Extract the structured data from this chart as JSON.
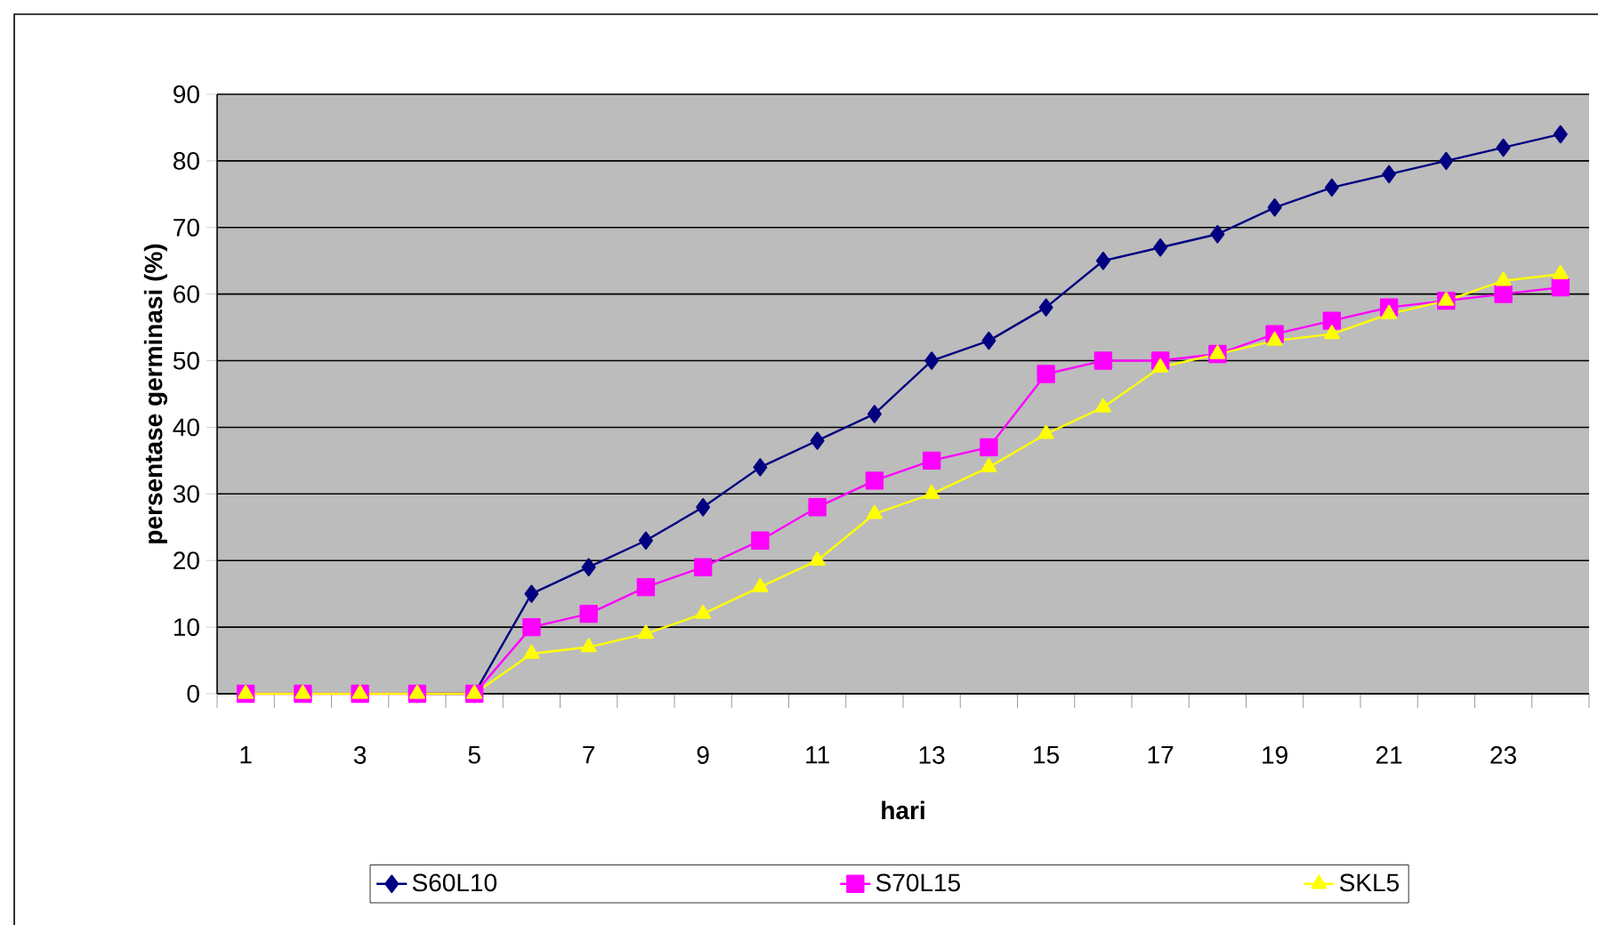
{
  "chart_data": {
    "type": "line",
    "xlabel": "hari",
    "ylabel": "persentase germinasi (%)",
    "categories": [
      "1",
      null,
      "3",
      null,
      "5",
      null,
      "7",
      null,
      "9",
      null,
      "11",
      null,
      "13",
      null,
      "15",
      null,
      "17",
      null,
      "19",
      null,
      "21",
      null,
      "23",
      null
    ],
    "series": [
      {
        "name": "S60L10",
        "color": "#000080",
        "marker": "diamond",
        "values": [
          null,
          null,
          null,
          0,
          0,
          15,
          19,
          23,
          28,
          34,
          38,
          42,
          50,
          53,
          58,
          65,
          67,
          69,
          73,
          76,
          78,
          80,
          82,
          84
        ]
      },
      {
        "name": "S70L15",
        "color": "#ff00ff",
        "marker": "square",
        "values": [
          0,
          0,
          0,
          0,
          0,
          10,
          12,
          16,
          19,
          23,
          28,
          32,
          35,
          37,
          48,
          50,
          50,
          51,
          54,
          56,
          58,
          59,
          60,
          61
        ]
      },
      {
        "name": "SKL5",
        "color": "#ffff00",
        "marker": "triangle",
        "values": [
          0,
          0,
          0,
          0,
          0,
          6,
          7,
          9,
          12,
          16,
          20,
          27,
          30,
          34,
          39,
          43,
          49,
          51,
          53,
          54,
          57,
          59,
          62,
          63
        ]
      }
    ],
    "ylim": [
      0,
      90
    ],
    "yticks": [
      0,
      10,
      20,
      30,
      40,
      50,
      60,
      70,
      80,
      90
    ],
    "grid": "y",
    "legend": "bottom",
    "line_style": "solid"
  }
}
